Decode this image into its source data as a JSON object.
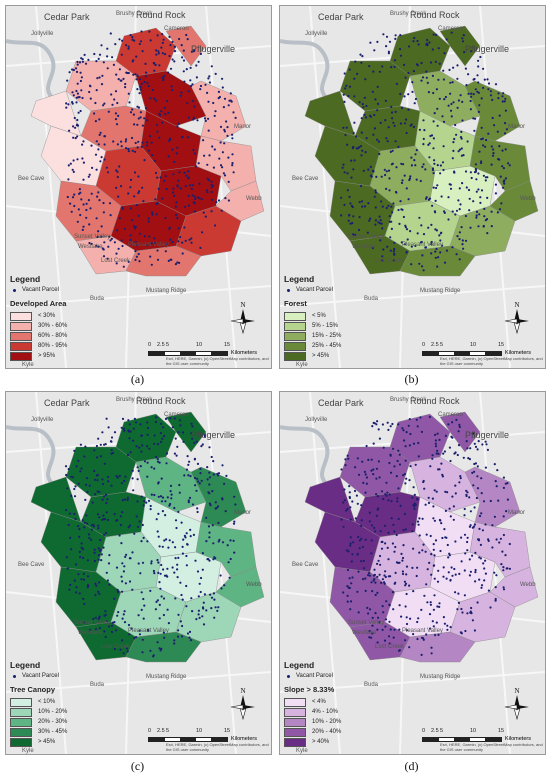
{
  "shared": {
    "place_labels": [
      "Cedar Park",
      "Round Rock",
      "Pflugerville",
      "Jollyville",
      "Brushy Creek",
      "Manor",
      "Bee Cave",
      "Webb",
      "Sunset Valley",
      "Pleasant Valley",
      "Buda",
      "Mustang Ridge",
      "Kyle",
      "Westlake",
      "Cameron",
      "Lost Creek"
    ],
    "vacant_label": "Vacant Parcel",
    "legend_title": "Legend",
    "scale_ticks": [
      "0",
      "2.5",
      "5",
      "10",
      "15"
    ],
    "scale_unit": "Kilometers",
    "north_label": "N",
    "attribution": "Esri, HERE, Garmin, (c) OpenStreetMap contributors, and the GIS user community",
    "parcel_color": "#1a1f6e",
    "basemap_color": "#e7e7e7",
    "water_color": "#b9bfc7"
  },
  "panels": [
    {
      "caption": "(a)",
      "legend_subtitle": "Developed Area",
      "classes": [
        {
          "label": "< 30%",
          "color": "#fbe0df"
        },
        {
          "label": "30% - 60%",
          "color": "#f3b0ac"
        },
        {
          "label": "60% - 80%",
          "color": "#e2756d"
        },
        {
          "label": "80% - 95%",
          "color": "#ca3a32"
        },
        {
          "label": "> 95%",
          "color": "#a20f12"
        }
      ]
    },
    {
      "caption": "(b)",
      "legend_subtitle": "Forest",
      "classes": [
        {
          "label": "< 5%",
          "color": "#d8f0bf"
        },
        {
          "label": "5% - 15%",
          "color": "#b5d58e"
        },
        {
          "label": "15% - 25%",
          "color": "#8ead5f"
        },
        {
          "label": "25% - 45%",
          "color": "#6a8a3a"
        },
        {
          "label": "> 45%",
          "color": "#4c6a21"
        }
      ]
    },
    {
      "caption": "(c)",
      "legend_subtitle": "Tree Canopy",
      "classes": [
        {
          "label": "< 10%",
          "color": "#d2efe2"
        },
        {
          "label": "10% - 20%",
          "color": "#9ed6b8"
        },
        {
          "label": "20% - 30%",
          "color": "#5fb483"
        },
        {
          "label": "30% - 45%",
          "color": "#2e8a54"
        },
        {
          "label": "> 45%",
          "color": "#0e6a30"
        }
      ]
    },
    {
      "caption": "(d)",
      "legend_subtitle": "Slope > 8.33%",
      "classes": [
        {
          "label": "< 4%",
          "color": "#f1ddf4"
        },
        {
          "label": "4% - 10%",
          "color": "#d7b3df"
        },
        {
          "label": "10% - 20%",
          "color": "#b486c3"
        },
        {
          "label": "20% - 40%",
          "color": "#8f57a5"
        },
        {
          "label": "> 40%",
          "color": "#6a2d85"
        }
      ]
    }
  ]
}
